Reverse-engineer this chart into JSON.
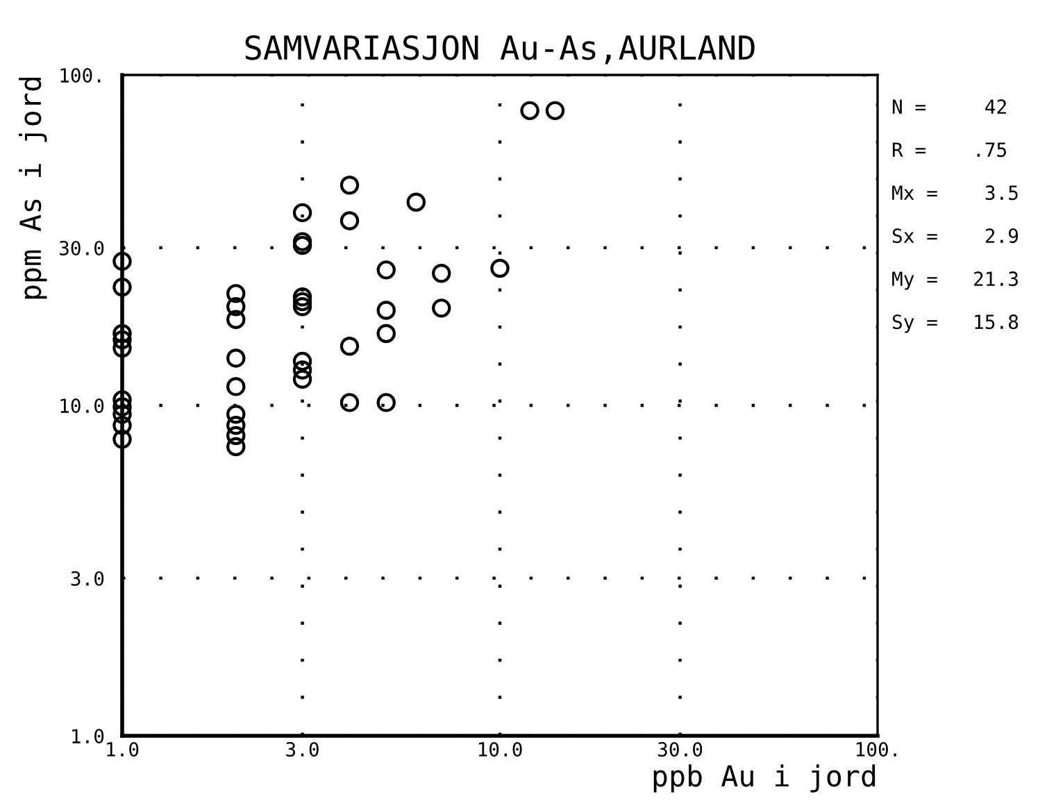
{
  "chart_data": {
    "type": "scatter",
    "title": "SAMVARIASJON Au-As,AURLAND",
    "xlabel": "ppb Au i jord",
    "ylabel": "ppm As i jord",
    "annotations": [
      "N =     42",
      "R =    .75",
      "Mx =    3.5",
      "Sx =    2.9",
      "My =   21.3",
      "Sy =   15.8"
    ],
    "log": "xy",
    "marker": "circle",
    "grid": true,
    "xlim": [
      1,
      100
    ],
    "ylim": [
      1,
      100
    ],
    "xticks": [
      {
        "value": 1,
        "label": "1.0"
      },
      {
        "value": 3,
        "label": "3.0"
      },
      {
        "value": 10,
        "label": "10.0"
      },
      {
        "value": 30,
        "label": "30.0"
      },
      {
        "value": 100,
        "label": "100."
      }
    ],
    "yticks": [
      {
        "value": 1,
        "label": "1.0"
      },
      {
        "value": 3,
        "label": "3.0"
      },
      {
        "value": 10,
        "label": "10.0"
      },
      {
        "value": 30,
        "label": "30.0"
      },
      {
        "value": 100,
        "label": "100."
      }
    ],
    "series": [
      {
        "color": "#000000",
        "x": [
          1,
          1,
          1,
          1,
          1,
          1,
          1,
          1,
          1,
          1,
          2,
          2,
          2,
          2,
          2,
          2,
          2,
          2,
          2,
          3,
          3,
          3,
          3,
          3,
          3,
          3,
          3,
          3,
          4,
          4,
          4,
          4,
          5,
          5,
          5,
          5,
          6,
          7,
          7,
          10,
          12,
          14
        ],
        "values": [
          27.3,
          22.8,
          16.5,
          15.8,
          14.9,
          10.4,
          9.9,
          9.4,
          8.7,
          7.9,
          21.8,
          19.9,
          18.2,
          13.9,
          11.4,
          9.4,
          8.7,
          8.1,
          7.5,
          38.3,
          31.3,
          30.5,
          21.3,
          20.6,
          19.9,
          13.6,
          12.8,
          12.0,
          46.4,
          36.2,
          15.1,
          10.2,
          25.7,
          19.4,
          16.5,
          10.2,
          41.2,
          25.1,
          19.7,
          26.0,
          78,
          78
        ]
      }
    ]
  }
}
